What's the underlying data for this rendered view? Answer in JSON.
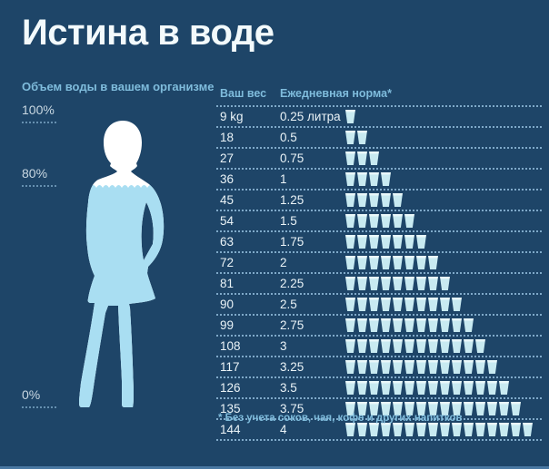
{
  "title": "Истина в воде",
  "left_panel": {
    "header": "Объем воды в вашем организме",
    "markers": [
      {
        "label": "100%"
      },
      {
        "label": "80%"
      },
      {
        "label": "0%"
      }
    ]
  },
  "table": {
    "headers": {
      "weight": "Ваш вес",
      "norm": "Ежедневная норма*"
    },
    "rows": [
      {
        "weight": "9 kg",
        "norm": "0.25 литра",
        "cups": 1
      },
      {
        "weight": "18",
        "norm": "0.5",
        "cups": 2
      },
      {
        "weight": "27",
        "norm": "0.75",
        "cups": 3
      },
      {
        "weight": "36",
        "norm": "1",
        "cups": 4
      },
      {
        "weight": "45",
        "norm": "1.25",
        "cups": 5
      },
      {
        "weight": "54",
        "norm": "1.5",
        "cups": 6
      },
      {
        "weight": "63",
        "norm": "1.75",
        "cups": 7
      },
      {
        "weight": "72",
        "norm": "2",
        "cups": 8
      },
      {
        "weight": "81",
        "norm": "2.25",
        "cups": 9
      },
      {
        "weight": "90",
        "norm": "2.5",
        "cups": 10
      },
      {
        "weight": "99",
        "norm": "2.75",
        "cups": 11
      },
      {
        "weight": "108",
        "norm": "3",
        "cups": 12
      },
      {
        "weight": "117",
        "norm": "3.25",
        "cups": 13
      },
      {
        "weight": "126",
        "norm": "3.5",
        "cups": 14
      },
      {
        "weight": "135",
        "norm": "3.75",
        "cups": 15
      },
      {
        "weight": "144",
        "norm": "4",
        "cups": 16
      }
    ]
  },
  "footnote": "* Без учета соков, чая, кофе и других напитков",
  "colors": {
    "background": "#1e4568",
    "title_text": "#f3fafc",
    "accent_light_blue": "#7fbcdc",
    "marker_text": "#c9d8e2",
    "row_text": "#eaf3f7",
    "dotted_line": "#7fa9c9",
    "cup": "#c8eaf1",
    "cup_rim": "#e9f8fa",
    "silhouette_white": "#ffffff",
    "silhouette_water": "#a9def2",
    "bottom_strip": "#4a78a2"
  },
  "chart_data": {
    "type": "table",
    "title": "Истина в воде",
    "left_axis_label": "Объем воды в вашем организме",
    "body_water_percent_markers": [
      100,
      80,
      0
    ],
    "columns": [
      "Ваш вес",
      "Ежедневная норма*"
    ],
    "weights_kg": [
      9,
      18,
      27,
      36,
      45,
      54,
      63,
      72,
      81,
      90,
      99,
      108,
      117,
      126,
      135,
      144
    ],
    "daily_norm_liters": [
      0.25,
      0.5,
      0.75,
      1,
      1.25,
      1.5,
      1.75,
      2,
      2.25,
      2.5,
      2.75,
      3,
      3.25,
      3.5,
      3.75,
      4
    ],
    "cups_per_row": [
      1,
      2,
      3,
      4,
      5,
      6,
      7,
      8,
      9,
      10,
      11,
      12,
      13,
      14,
      15,
      16
    ],
    "footnote": "* Без учета соков, чая, кофе и других напитков",
    "legend_position": "none",
    "grid": "dotted-row-separators"
  }
}
